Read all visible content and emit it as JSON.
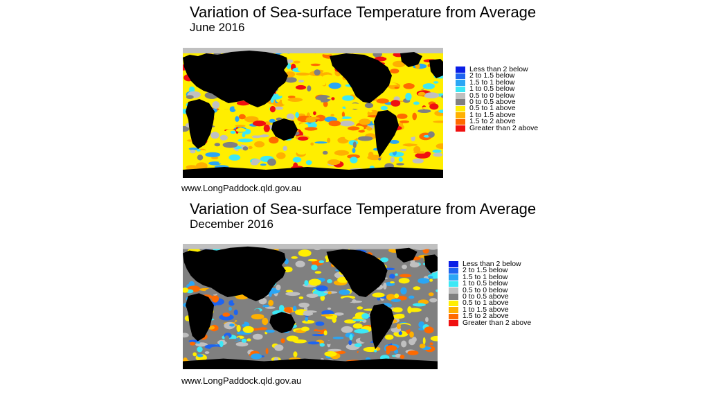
{
  "legend": [
    {
      "label": "Less than 2 below",
      "color": "#0a1ee6"
    },
    {
      "label": "2 to 1.5 below",
      "color": "#1e64f0"
    },
    {
      "label": "1.5 to 1 below",
      "color": "#2aa6f5"
    },
    {
      "label": "1 to 0.5 below",
      "color": "#3ce8f5"
    },
    {
      "label": "0.5 to 0 below",
      "color": "#c0c0c0"
    },
    {
      "label": "0 to 0.5 above",
      "color": "#808080"
    },
    {
      "label": "0.5 to 1 above",
      "color": "#ffee00"
    },
    {
      "label": "1 to 1.5 above",
      "color": "#ffb000"
    },
    {
      "label": "1.5 to 2 above",
      "color": "#ff6a00"
    },
    {
      "label": "Greater than 2 above",
      "color": "#f01010"
    }
  ],
  "colors": {
    "land": "#000000",
    "polar_band": "#c0c0c0"
  },
  "maps": [
    {
      "title": "Variation of Sea-surface Temperature from Average",
      "subtitle": "June 2016",
      "source": "www.LongPaddock.qld.gov.au"
    },
    {
      "title": "Variation of Sea-surface Temperature from Average",
      "subtitle": "December 2016",
      "source": "www.LongPaddock.qld.gov.au"
    }
  ]
}
